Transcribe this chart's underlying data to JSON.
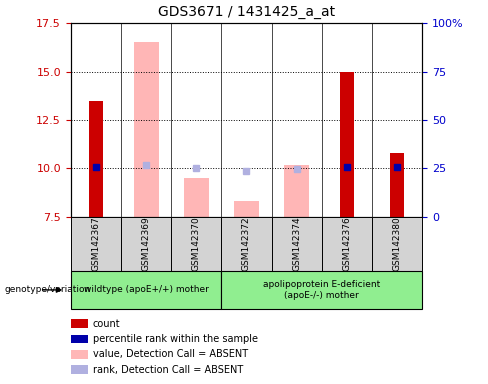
{
  "title": "GDS3671 / 1431425_a_at",
  "samples": [
    "GSM142367",
    "GSM142369",
    "GSM142370",
    "GSM142372",
    "GSM142374",
    "GSM142376",
    "GSM142380"
  ],
  "ylim_left": [
    7.5,
    17.5
  ],
  "ylim_right": [
    0,
    100
  ],
  "yticks_left": [
    7.5,
    10.0,
    12.5,
    15.0,
    17.5
  ],
  "yticks_right": [
    0,
    25,
    50,
    75,
    100
  ],
  "ytick_labels_right": [
    "0",
    "25",
    "50",
    "75",
    "100%"
  ],
  "count_values": [
    13.5,
    null,
    null,
    null,
    null,
    15.0,
    10.8
  ],
  "percentile_values": [
    26,
    null,
    null,
    null,
    null,
    26,
    26
  ],
  "absent_value_values": [
    null,
    16.5,
    9.5,
    8.3,
    10.2,
    null,
    null
  ],
  "absent_rank_values": [
    null,
    27,
    25,
    23.5,
    24.5,
    null,
    null
  ],
  "group1_label": "wildtype (apoE+/+) mother",
  "group2_label": "apolipoprotein E-deficient\n(apoE-/-) mother",
  "group1_samples": 3,
  "group2_samples": 4,
  "count_color": "#cc0000",
  "percentile_color": "#0000aa",
  "absent_value_color": "#ffb6b6",
  "absent_rank_color": "#b0b0e0",
  "bar_width": 0.5,
  "background_color": "#ffffff",
  "plot_bg": "#ffffff",
  "tick_label_color_left": "#cc0000",
  "tick_label_color_right": "#0000cc",
  "sample_box_color": "#d3d3d3",
  "group_box_color": "#90ee90",
  "legend_items": [
    [
      "#cc0000",
      "count"
    ],
    [
      "#0000aa",
      "percentile rank within the sample"
    ],
    [
      "#ffb6b6",
      "value, Detection Call = ABSENT"
    ],
    [
      "#b0b0e0",
      "rank, Detection Call = ABSENT"
    ]
  ]
}
